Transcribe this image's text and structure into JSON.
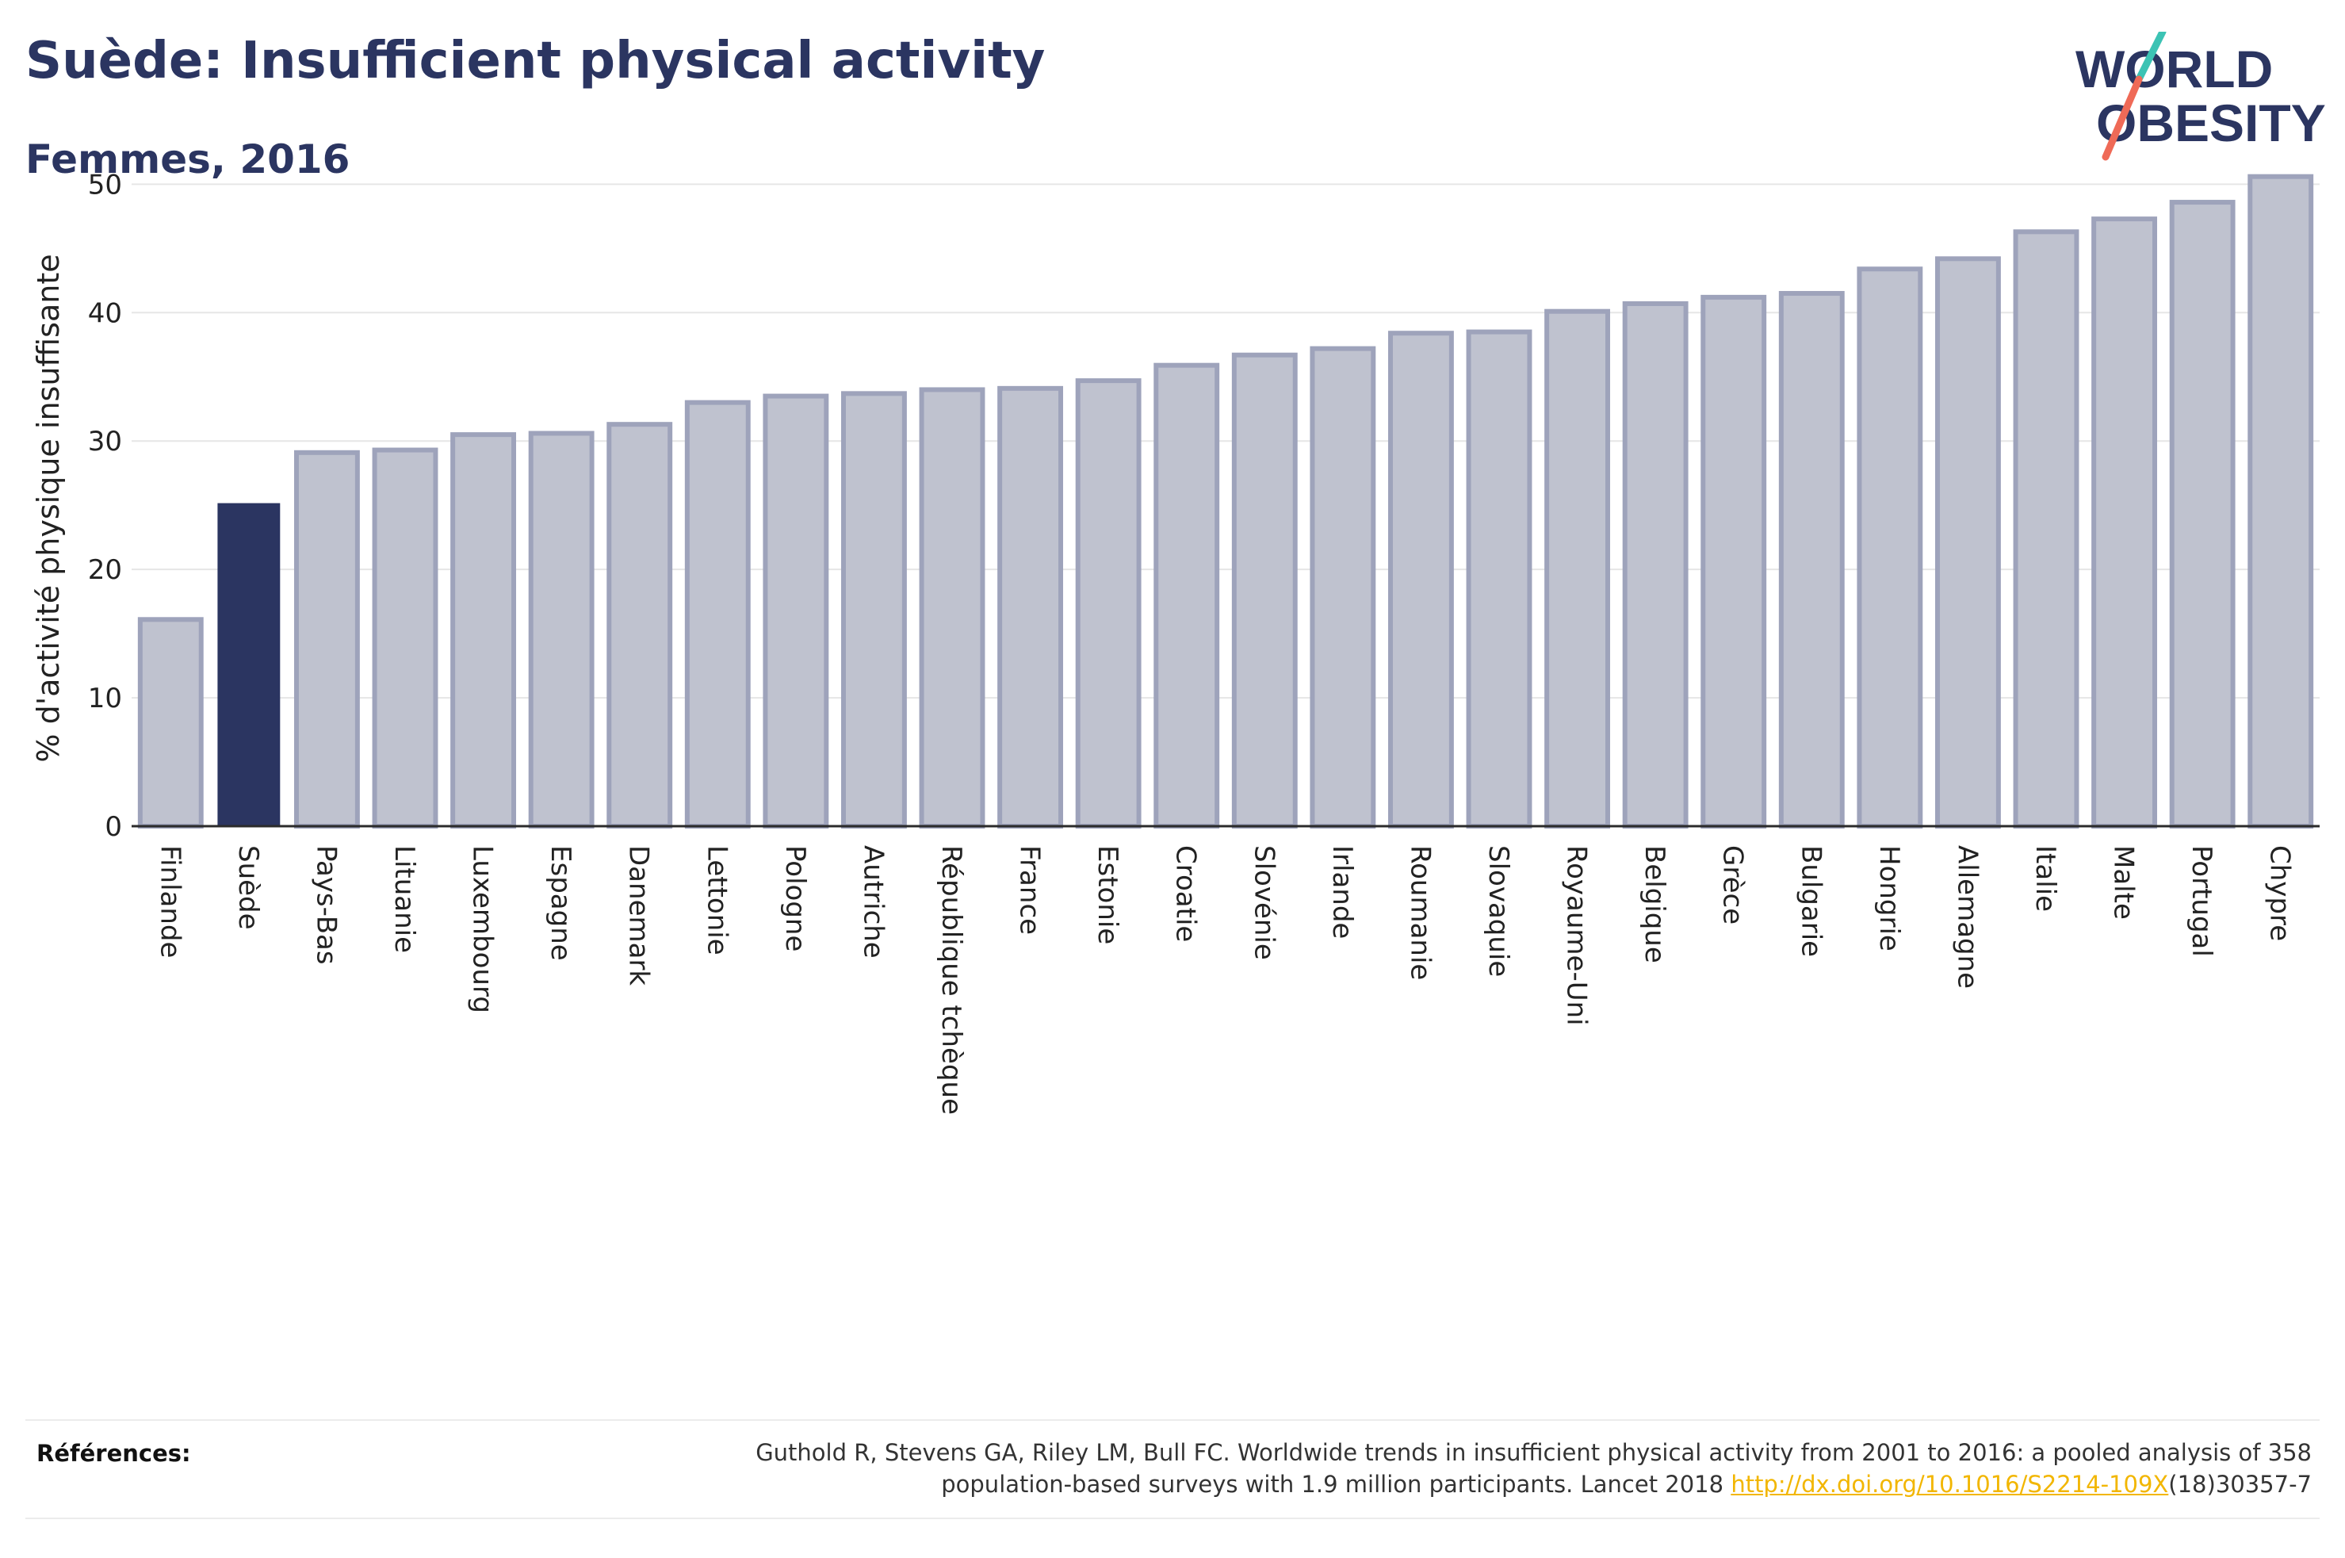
{
  "header": {
    "title": "Suède: Insufficient physical activity",
    "subtitle": "Femmes, 2016"
  },
  "logo": {
    "line1": "WORLD",
    "line2": "OBESITY",
    "slash_colors": [
      "#3cc3b4",
      "#ef6a57"
    ]
  },
  "chart_data": {
    "type": "bar",
    "ylabel": "% d'activité physique insuffisante",
    "ylim": [
      0,
      52
    ],
    "yticks": [
      0,
      10,
      20,
      30,
      40,
      50
    ],
    "grid": true,
    "highlight": "Suède",
    "colors": {
      "bar": "#bfc2cf",
      "bar_border": "#9ea3bb",
      "highlight": "#2b3561"
    },
    "categories": [
      "Finlande",
      "Suède",
      "Pays-Bas",
      "Lituanie",
      "Luxembourg",
      "Espagne",
      "Danemark",
      "Lettonie",
      "Pologne",
      "Autriche",
      "République tchèque",
      "France",
      "Estonie",
      "Croatie",
      "Slovénie",
      "Irlande",
      "Roumanie",
      "Slovaquie",
      "Royaume-Uni",
      "Belgique",
      "Grèce",
      "Bulgarie",
      "Hongrie",
      "Allemagne",
      "Italie",
      "Malte",
      "Portugal",
      "Chypre"
    ],
    "values": [
      16.1,
      25.1,
      29.1,
      29.3,
      30.5,
      30.6,
      31.3,
      33.0,
      33.5,
      33.7,
      34.0,
      34.1,
      34.7,
      35.9,
      36.7,
      37.2,
      38.4,
      38.5,
      40.1,
      40.7,
      41.2,
      41.5,
      43.4,
      44.2,
      46.3,
      47.3,
      48.6,
      50.6
    ]
  },
  "references": {
    "label": "Références:",
    "line1": "Guthold R, Stevens GA, Riley LM, Bull FC. Worldwide trends in insufficient physical activity from 2001 to 2016: a pooled analysis of 358",
    "line2_before": "population-based surveys with 1.9 million participants. Lancet 2018 ",
    "link": "http://dx.doi.org/10.1016/S2214-109X",
    "line2_after": "(18)30357-7"
  }
}
